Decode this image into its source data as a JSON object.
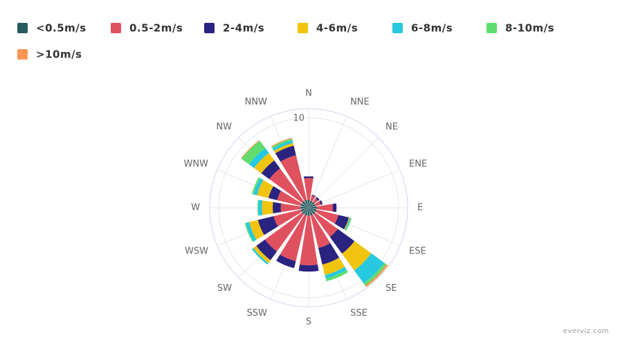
{
  "chart_data": {
    "type": "windrose",
    "categories": [
      "N",
      "NNE",
      "NE",
      "ENE",
      "E",
      "ESE",
      "SE",
      "SSE",
      "S",
      "SSW",
      "SW",
      "WSW",
      "W",
      "WNW",
      "NW",
      "NNW"
    ],
    "series": [
      {
        "name": "<0.5m/s",
        "color": "#265a5f",
        "values": [
          0.9,
          0.8,
          0.8,
          0.8,
          0.9,
          0.9,
          0.9,
          0.9,
          0.9,
          0.9,
          0.9,
          0.9,
          0.9,
          0.9,
          0.9,
          0.9
        ]
      },
      {
        "name": "0.5-2m/s",
        "color": "#e0515f",
        "values": [
          2.4,
          0.6,
          0.5,
          0.6,
          1.8,
          2.5,
          3.1,
          3.7,
          5.5,
          5.2,
          5.1,
          3.1,
          2.2,
          2.7,
          4.5,
          5.1
        ]
      },
      {
        "name": "2-4m/s",
        "color": "#2b2380",
        "values": [
          0.2,
          0.1,
          0.2,
          0.2,
          0.4,
          1.2,
          2.3,
          1.9,
          0.7,
          0.8,
          1.2,
          1.8,
          0.9,
          1.0,
          1.1,
          1.1
        ]
      },
      {
        "name": "4-6m/s",
        "color": "#f1c40f",
        "values": [
          0,
          0,
          0,
          0,
          0,
          0.1,
          2.3,
          1.2,
          0,
          0,
          0.4,
          1.0,
          1.2,
          1.3,
          1.0,
          0.3
        ]
      },
      {
        "name": "6-8m/s",
        "color": "#27c9e0",
        "values": [
          0,
          0,
          0,
          0,
          0,
          0.1,
          1.8,
          0.4,
          0,
          0,
          0.2,
          0.4,
          0.4,
          0.4,
          0.7,
          0.3
        ]
      },
      {
        "name": "8-10m/s",
        "color": "#5fdd6e",
        "values": [
          0,
          0,
          0,
          0,
          0,
          0.1,
          0.3,
          0.3,
          0,
          0,
          0,
          0.1,
          0.1,
          0.2,
          1.0,
          0.2
        ]
      },
      {
        "name": ">10m/s",
        "color": "#fc9653",
        "values": [
          0,
          0,
          0,
          0,
          0,
          0,
          0.2,
          0,
          0,
          0,
          0,
          0,
          0,
          0,
          0.1,
          0.1
        ]
      }
    ],
    "ylim": [
      0,
      11
    ],
    "yticks": [
      10
    ],
    "grid": true,
    "credit": "everviz.com"
  }
}
